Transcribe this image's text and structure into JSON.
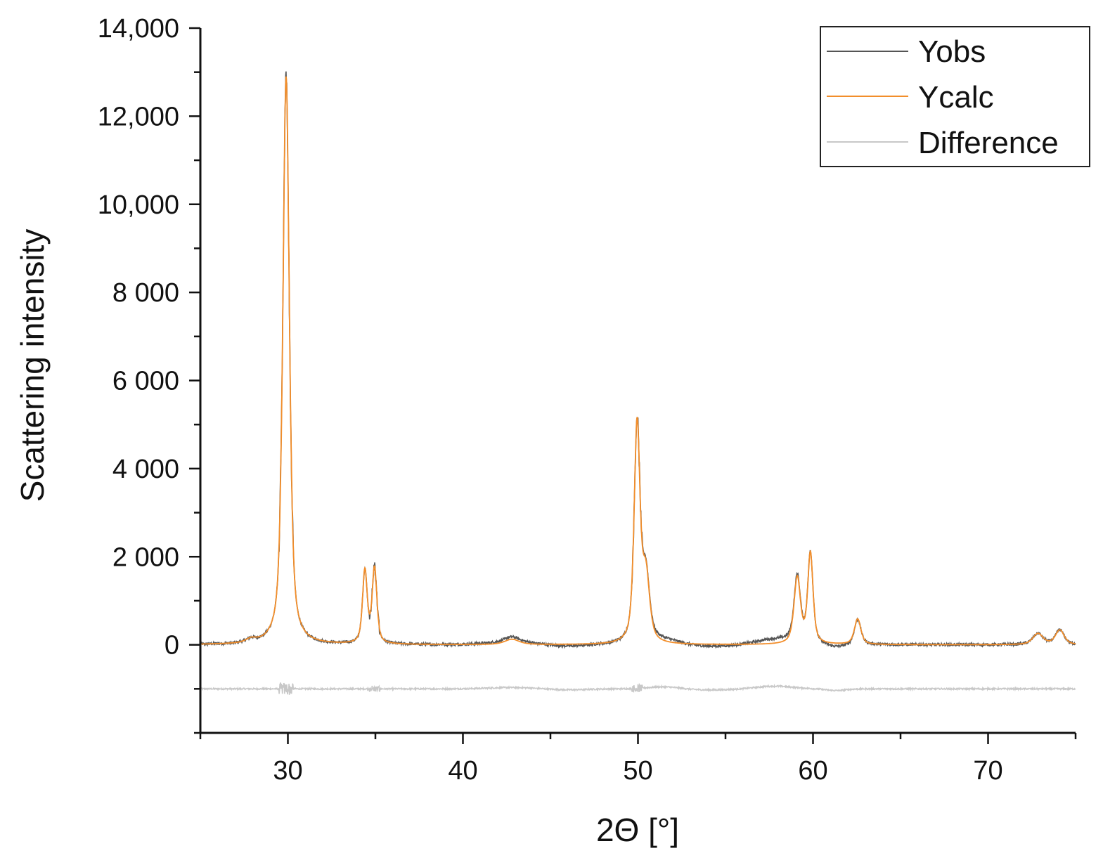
{
  "chart_data": {
    "type": "line",
    "xlabel": "2Θ [°]",
    "ylabel": "Scattering intensity",
    "xlim": [
      25,
      75
    ],
    "ylim": [
      -2000,
      14000
    ],
    "x_ticks": [
      30,
      40,
      50,
      60,
      70
    ],
    "x_tick_labels": [
      "30",
      "40",
      "50",
      "60",
      "70"
    ],
    "x_minor_step": 5,
    "y_ticks": [
      0,
      2000,
      4000,
      6000,
      8000,
      10000,
      12000,
      14000
    ],
    "y_tick_labels": [
      "0",
      "2 000",
      "4 000",
      "6 000",
      "8 000",
      "10,000",
      "12,000",
      "14,000"
    ],
    "y_minor_step": 1000,
    "grid": false,
    "legend": {
      "position": "top-right"
    },
    "baseline": 0,
    "difference_offset": -1000,
    "peaks": [
      {
        "pos": 27.9,
        "height": 80,
        "width": 0.35
      },
      {
        "pos": 29.9,
        "height": 12900,
        "width": 0.22
      },
      {
        "pos": 34.4,
        "height": 1650,
        "width": 0.16
      },
      {
        "pos": 34.95,
        "height": 1700,
        "width": 0.16
      },
      {
        "pos": 42.8,
        "height": 120,
        "width": 0.5
      },
      {
        "pos": 49.95,
        "height": 4950,
        "width": 0.2
      },
      {
        "pos": 50.45,
        "height": 1500,
        "width": 0.25
      },
      {
        "pos": 59.1,
        "height": 1500,
        "width": 0.22
      },
      {
        "pos": 59.85,
        "height": 2050,
        "width": 0.18
      },
      {
        "pos": 62.55,
        "height": 580,
        "width": 0.22
      },
      {
        "pos": 72.85,
        "height": 250,
        "width": 0.35
      },
      {
        "pos": 74.1,
        "height": 330,
        "width": 0.3
      }
    ],
    "series": [
      {
        "name": "Yobs",
        "color": "#555555"
      },
      {
        "name": "Ycalc",
        "color": "#f28e2b"
      },
      {
        "name": "Difference",
        "color": "#c8c8c8"
      }
    ]
  }
}
